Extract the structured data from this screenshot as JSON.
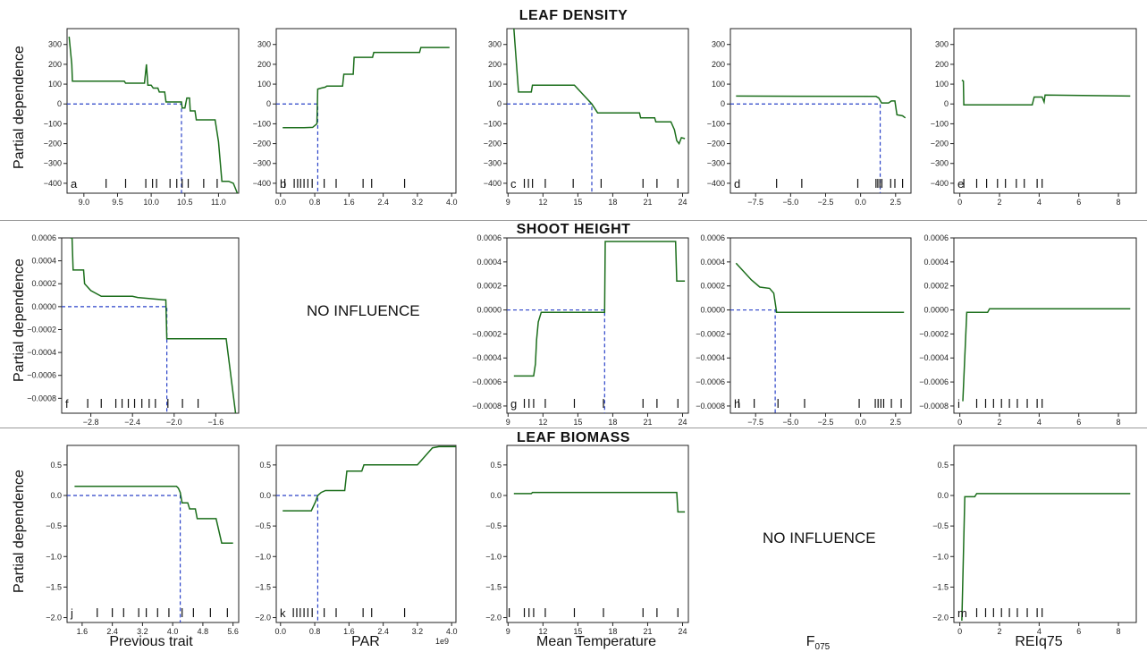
{
  "sections": {
    "leaf_density": "LEAF DENSITY",
    "shoot_height": "SHOOT HEIGHT",
    "leaf_biomass": "LEAF BIOMASS"
  },
  "y_label": "Partial dependence",
  "x_labels": {
    "previous_trait": "Previous trait",
    "par": "PAR",
    "mean_temp": "Mean Temperature",
    "f075_main": "F",
    "f075_sub": "075",
    "reiq75": "REIq75"
  },
  "no_influence": "NO INFLUENCE",
  "colors": {
    "line": "#1b6e1b",
    "reference": "#2a42c8",
    "frame": "#222222"
  },
  "chart_data": [
    {
      "id": "a",
      "label": "a",
      "type": "line",
      "xlim": [
        8.75,
        11.3
      ],
      "ylim": [
        -450,
        380
      ],
      "xticks": [
        9.0,
        9.5,
        10.0,
        10.5,
        11.0
      ],
      "xticklabels": [
        "9.0",
        "9.5",
        "10.0",
        "10.5",
        "11.0"
      ],
      "yticks": [
        300,
        200,
        100,
        0,
        -100,
        -200,
        -300,
        -400
      ],
      "yticklabels": [
        "300",
        "200",
        "100",
        "0",
        "−100",
        "−200",
        "−300",
        "−400"
      ],
      "x": [
        8.78,
        8.82,
        8.83,
        9.6,
        9.62,
        9.9,
        9.93,
        9.95,
        9.97,
        10.0,
        10.03,
        10.1,
        10.12,
        10.2,
        10.22,
        10.45,
        10.46,
        10.5,
        10.53,
        10.57,
        10.58,
        10.65,
        10.67,
        10.75,
        10.77,
        10.95,
        11.0,
        11.05,
        11.12,
        11.15,
        11.22,
        11.28
      ],
      "y": [
        340,
        200,
        115,
        115,
        105,
        105,
        200,
        95,
        95,
        95,
        80,
        80,
        60,
        60,
        10,
        10,
        -20,
        -20,
        30,
        30,
        -35,
        -35,
        -80,
        -80,
        -80,
        -80,
        -190,
        -390,
        -390,
        -390,
        -400,
        -450
      ],
      "ref": {
        "x": 10.45,
        "y": 0
      },
      "rug": [
        9.33,
        9.62,
        9.92,
        10.02,
        10.08,
        10.28,
        10.38,
        10.46,
        10.55,
        10.78,
        10.98
      ]
    },
    {
      "id": "b",
      "label": "b",
      "type": "line",
      "xlim": [
        -0.1,
        4.1
      ],
      "ylim": [
        -450,
        380
      ],
      "xticks": [
        0.0,
        0.8,
        1.6,
        2.4,
        3.2,
        4.0
      ],
      "xticklabels": [
        "0.0",
        "0.8",
        "1.6",
        "2.4",
        "3.2",
        "4.0"
      ],
      "yticks": [
        300,
        200,
        100,
        0,
        -100,
        -200,
        -300,
        -400
      ],
      "yticklabels": [
        "300",
        "200",
        "100",
        "0",
        "−100",
        "−200",
        "−300",
        "−400"
      ],
      "x": [
        0.05,
        0.55,
        0.75,
        0.85,
        0.87,
        0.95,
        1.05,
        1.08,
        1.45,
        1.48,
        1.7,
        1.72,
        2.15,
        2.18,
        3.25,
        3.28,
        3.95
      ],
      "y": [
        -120,
        -120,
        -118,
        -100,
        75,
        80,
        85,
        90,
        90,
        150,
        150,
        235,
        235,
        260,
        260,
        285,
        285
      ],
      "ref": {
        "x": 0.87,
        "y": 0
      },
      "rug": [
        0.1,
        0.32,
        0.4,
        0.47,
        0.55,
        0.64,
        0.74,
        1.02,
        1.3,
        1.93,
        2.13,
        2.9
      ]
    },
    {
      "id": "c",
      "label": "c",
      "type": "line",
      "xlim": [
        8.9,
        24.5
      ],
      "ylim": [
        -450,
        380
      ],
      "xticks": [
        9,
        12,
        15,
        18,
        21,
        24
      ],
      "xticklabels": [
        "9",
        "12",
        "15",
        "18",
        "21",
        "24"
      ],
      "yticks": [
        300,
        200,
        100,
        0,
        -100,
        -200,
        -300,
        -400
      ],
      "yticklabels": [
        "300",
        "200",
        "100",
        "0",
        "−100",
        "−200",
        "−300",
        "−400"
      ],
      "x": [
        9.5,
        9.9,
        11.0,
        11.1,
        14.7,
        16.2,
        16.7,
        20.3,
        20.4,
        21.6,
        21.7,
        23.0,
        23.3,
        23.5,
        23.7,
        23.9,
        24.2
      ],
      "y": [
        380,
        60,
        60,
        95,
        95,
        0,
        -45,
        -45,
        -70,
        -70,
        -90,
        -90,
        -130,
        -185,
        -200,
        -170,
        -175
      ],
      "ref": {
        "x": 16.2,
        "y": 0
      },
      "rug": [
        10.4,
        10.75,
        11.1,
        12.2,
        14.6,
        17.0,
        20.6,
        21.8,
        23.6
      ]
    },
    {
      "id": "d",
      "label": "d",
      "type": "line",
      "xlim": [
        -9.3,
        3.6
      ],
      "ylim": [
        -450,
        380
      ],
      "xticks": [
        -7.5,
        -5.0,
        -2.5,
        0.0,
        2.5
      ],
      "xticklabels": [
        "−7.5",
        "−5.0",
        "−2.5",
        "0.0",
        "2.5"
      ],
      "yticks": [
        300,
        200,
        100,
        0,
        -100,
        -200,
        -300,
        -400
      ],
      "yticklabels": [
        "300",
        "200",
        "100",
        "0",
        "−100",
        "−200",
        "−300",
        "−400"
      ],
      "x": [
        -8.9,
        1.1,
        1.3,
        1.5,
        2.0,
        2.2,
        2.45,
        2.6,
        3.0,
        3.2
      ],
      "y": [
        40,
        38,
        30,
        5,
        5,
        15,
        15,
        -55,
        -60,
        -70
      ],
      "ref": {
        "x": 1.4,
        "y": 0
      },
      "rug": [
        -6.0,
        -4.2,
        -0.2,
        1.1,
        1.23,
        1.38,
        1.52,
        2.15,
        2.45,
        3.0
      ]
    },
    {
      "id": "e",
      "label": "e",
      "type": "line",
      "xlim": [
        -0.3,
        8.9
      ],
      "ylim": [
        -450,
        380
      ],
      "xticks": [
        0,
        2,
        4,
        6,
        8
      ],
      "xticklabels": [
        "0",
        "2",
        "4",
        "6",
        "8"
      ],
      "yticks": [
        300,
        200,
        100,
        0,
        -100,
        -200,
        -300,
        -400
      ],
      "yticklabels": [
        "300",
        "200",
        "100",
        "0",
        "−100",
        "−200",
        "−300",
        "−400"
      ],
      "x": [
        0.1,
        0.18,
        0.2,
        3.65,
        3.75,
        4.15,
        4.25,
        4.3,
        8.6
      ],
      "y": [
        120,
        115,
        -5,
        -5,
        35,
        35,
        10,
        45,
        40
      ],
      "ref": null,
      "rug": [
        0.2,
        0.85,
        1.35,
        1.9,
        2.3,
        2.85,
        3.25,
        3.9,
        4.15
      ]
    },
    {
      "id": "f",
      "label": "f",
      "type": "line",
      "xlim": [
        -3.08,
        -1.38
      ],
      "ylim": [
        -0.00093,
        0.0006
      ],
      "xticks": [
        -2.8,
        -2.4,
        -2.0,
        -1.6
      ],
      "xticklabels": [
        "−2.8",
        "−2.4",
        "−2.0",
        "−1.6"
      ],
      "yticks": [
        0.0006,
        0.0004,
        0.0002,
        0.0,
        -0.0002,
        -0.0004,
        -0.0006,
        -0.0008
      ],
      "yticklabels": [
        "0.0006",
        "0.0004",
        "0.0002",
        "0.0000",
        "−0.0002",
        "−0.0004",
        "−0.0006",
        "−0.0008"
      ],
      "x": [
        -3.0,
        -2.98,
        -2.97,
        -2.87,
        -2.86,
        -2.8,
        -2.7,
        -2.4,
        -2.35,
        -2.1,
        -2.08,
        -2.07,
        -1.5,
        -1.41
      ],
      "y": [
        0.0006,
        0.0006,
        0.00032,
        0.00032,
        0.0002,
        0.00014,
        9e-05,
        9e-05,
        8e-05,
        6e-05,
        6e-05,
        -0.00028,
        -0.00028,
        -0.00093
      ],
      "ref": {
        "x": -2.07,
        "y": 0
      },
      "rug": [
        -2.83,
        -2.7,
        -2.56,
        -2.5,
        -2.44,
        -2.38,
        -2.31,
        -2.24,
        -2.18,
        -2.06,
        -1.92,
        -1.77
      ]
    },
    {
      "id": "g",
      "label": "g",
      "type": "line",
      "xlim": [
        8.9,
        24.5
      ],
      "ylim": [
        -0.00086,
        0.0006
      ],
      "xticks": [
        9,
        12,
        15,
        18,
        21,
        24
      ],
      "xticklabels": [
        "9",
        "12",
        "15",
        "18",
        "21",
        "24"
      ],
      "yticks": [
        0.0006,
        0.0004,
        0.0002,
        0.0,
        -0.0002,
        -0.0004,
        -0.0006,
        -0.0008
      ],
      "yticklabels": [
        "0.0006",
        "0.0004",
        "0.0002",
        "0.0000",
        "−0.0002",
        "−0.0004",
        "−0.0006",
        "−0.0008"
      ],
      "x": [
        9.5,
        11.2,
        11.35,
        11.45,
        11.6,
        11.85,
        17.3,
        17.35,
        23.4,
        23.5,
        24.2
      ],
      "y": [
        -0.00055,
        -0.00055,
        -0.00045,
        -0.00025,
        -0.0001,
        -2e-05,
        -2e-05,
        0.00057,
        0.00057,
        0.00024,
        0.00024
      ],
      "ref": {
        "x": 17.3,
        "y": 0
      },
      "rug": [
        10.4,
        10.8,
        11.2,
        12.2,
        14.7,
        17.2,
        20.6,
        21.8,
        23.6
      ]
    },
    {
      "id": "h",
      "label": "h",
      "type": "line",
      "xlim": [
        -9.3,
        3.6
      ],
      "ylim": [
        -0.00086,
        0.0006
      ],
      "xticks": [
        -7.5,
        -5.0,
        -2.5,
        0.0,
        2.5
      ],
      "xticklabels": [
        "−7.5",
        "−5.0",
        "−2.5",
        "0.0",
        "2.5"
      ],
      "yticks": [
        0.0006,
        0.0004,
        0.0002,
        0.0,
        -0.0002,
        -0.0004,
        -0.0006,
        -0.0008
      ],
      "yticklabels": [
        "0.0006",
        "0.0004",
        "0.0002",
        "0.0000",
        "−0.0002",
        "−0.0004",
        "−0.0006",
        "−0.0008"
      ],
      "x": [
        -8.9,
        -7.8,
        -7.2,
        -6.5,
        -6.2,
        -6.0,
        3.1
      ],
      "y": [
        0.00039,
        0.00025,
        0.00019,
        0.00018,
        0.00014,
        -2e-05,
        -2e-05
      ],
      "ref": {
        "x": -6.1,
        "y": 0
      },
      "rug": [
        -8.7,
        -7.6,
        -5.9,
        -4.0,
        -0.1,
        1.05,
        1.25,
        1.45,
        1.65,
        2.2,
        2.9
      ]
    },
    {
      "id": "i",
      "label": "i",
      "type": "line",
      "xlim": [
        -0.3,
        8.9
      ],
      "ylim": [
        -0.00086,
        0.0006
      ],
      "xticks": [
        0,
        2,
        4,
        6,
        8
      ],
      "xticklabels": [
        "0",
        "2",
        "4",
        "6",
        "8"
      ],
      "yticks": [
        0.0006,
        0.0004,
        0.0002,
        0.0,
        -0.0002,
        -0.0004,
        -0.0006,
        -0.0008
      ],
      "yticklabels": [
        "0.0006",
        "0.0004",
        "0.0002",
        "0.0000",
        "−0.0002",
        "−0.0004",
        "−0.0006",
        "−0.0008"
      ],
      "x": [
        0.15,
        0.35,
        1.4,
        1.5,
        8.6
      ],
      "y": [
        -0.00076,
        -2e-05,
        -2e-05,
        1e-05,
        1e-05
      ],
      "ref": null,
      "rug": [
        0.85,
        1.3,
        1.7,
        2.1,
        2.5,
        2.9,
        3.4,
        3.9,
        4.15
      ]
    },
    {
      "id": "j",
      "label": "j",
      "type": "line",
      "xlim": [
        1.2,
        5.75
      ],
      "ylim": [
        -2.08,
        0.82
      ],
      "xticks": [
        1.6,
        2.4,
        3.2,
        4.0,
        4.8,
        5.6
      ],
      "xticklabels": [
        "1.6",
        "2.4",
        "3.2",
        "4.0",
        "4.8",
        "5.6"
      ],
      "yticks": [
        0.5,
        0.0,
        -0.5,
        -1.0,
        -1.5,
        -2.0
      ],
      "yticklabels": [
        "0.5",
        "0.0",
        "−0.5",
        "−1.0",
        "−1.5",
        "−2.0"
      ],
      "x": [
        1.4,
        4.1,
        4.15,
        4.2,
        4.25,
        4.4,
        4.45,
        4.6,
        4.65,
        5.15,
        5.3,
        5.6
      ],
      "y": [
        0.15,
        0.15,
        0.12,
        0.05,
        -0.12,
        -0.12,
        -0.22,
        -0.22,
        -0.38,
        -0.38,
        -0.78,
        -0.78
      ],
      "ref": {
        "x": 4.2,
        "y": 0
      },
      "rug": [
        2.0,
        2.4,
        2.7,
        3.1,
        3.3,
        3.6,
        3.9,
        4.25,
        4.55,
        5.0,
        5.45
      ]
    },
    {
      "id": "k",
      "label": "k",
      "type": "line",
      "xlim": [
        -0.1,
        4.1
      ],
      "ylim": [
        -2.08,
        0.82
      ],
      "xticks": [
        0.0,
        0.8,
        1.6,
        2.4,
        3.2,
        4.0
      ],
      "xticklabels": [
        "0.0",
        "0.8",
        "1.6",
        "2.4",
        "3.2",
        "4.0"
      ],
      "sci_note": "1e9",
      "x": [
        0.05,
        0.72,
        0.82,
        0.87,
        0.95,
        1.05,
        1.1,
        1.5,
        1.55,
        1.9,
        1.95,
        3.2,
        3.55,
        3.7,
        4.1
      ],
      "y": [
        -0.25,
        -0.25,
        -0.1,
        0.0,
        0.05,
        0.08,
        0.08,
        0.08,
        0.4,
        0.4,
        0.5,
        0.5,
        0.78,
        0.8,
        0.8
      ],
      "yticks": [
        0.5,
        0.0,
        -0.5,
        -1.0,
        -1.5,
        -2.0
      ],
      "yticklabels": [
        "0.5",
        "0.0",
        "−0.5",
        "−1.0",
        "−1.5",
        "−2.0"
      ],
      "ref": {
        "x": 0.87,
        "y": 0
      },
      "rug": [
        0.3,
        0.38,
        0.46,
        0.55,
        0.64,
        0.74,
        1.02,
        1.3,
        1.93,
        2.13,
        2.9
      ]
    },
    {
      "id": "l",
      "label": "",
      "type": "line",
      "xlim": [
        8.9,
        24.5
      ],
      "ylim": [
        -2.08,
        0.82
      ],
      "xticks": [
        9,
        12,
        15,
        18,
        21,
        24
      ],
      "xticklabels": [
        "9",
        "12",
        "15",
        "18",
        "21",
        "24"
      ],
      "yticks": [
        0.5,
        0.0,
        -0.5,
        -1.0,
        -1.5,
        -2.0
      ],
      "yticklabels": [
        "0.5",
        "0.0",
        "−0.5",
        "−1.0",
        "−1.5",
        "−2.0"
      ],
      "x": [
        9.5,
        11.0,
        11.1,
        23.5,
        23.6,
        24.2
      ],
      "y": [
        0.03,
        0.03,
        0.05,
        0.05,
        -0.27,
        -0.27
      ],
      "ref": null,
      "rug": [
        9.1,
        10.4,
        10.8,
        11.2,
        12.2,
        14.7,
        17.2,
        20.6,
        21.8,
        23.6
      ]
    },
    {
      "id": "m",
      "label": "m",
      "type": "line",
      "xlim": [
        -0.3,
        8.9
      ],
      "ylim": [
        -2.08,
        0.82
      ],
      "xticks": [
        0,
        2,
        4,
        6,
        8
      ],
      "xticklabels": [
        "0",
        "2",
        "4",
        "6",
        "8"
      ],
      "yticks": [
        0.5,
        0.0,
        -0.5,
        -1.0,
        -1.5,
        -2.0
      ],
      "yticklabels": [
        "0.5",
        "0.0",
        "−0.5",
        "−1.0",
        "−1.5",
        "−2.0"
      ],
      "x": [
        0.1,
        0.25,
        0.75,
        0.85,
        8.6
      ],
      "y": [
        -2.05,
        -0.02,
        -0.02,
        0.03,
        0.03
      ],
      "ref": null,
      "rug": [
        0.85,
        1.3,
        1.7,
        2.1,
        2.5,
        2.9,
        3.4,
        3.9,
        4.15
      ]
    }
  ]
}
